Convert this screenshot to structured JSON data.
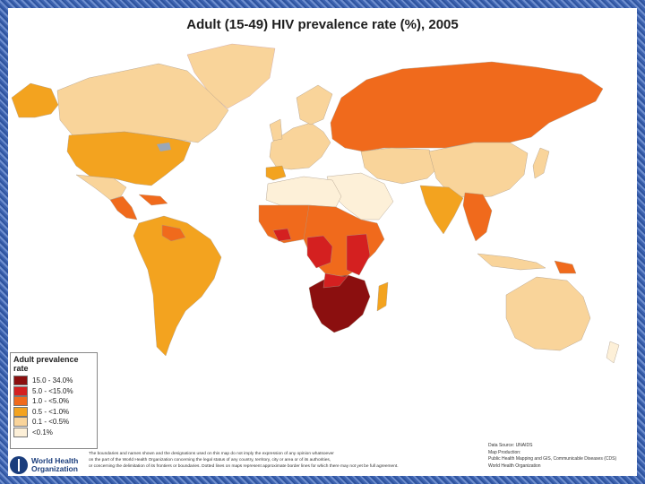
{
  "title": "Adult (15-49) HIV prevalence rate (%), 2005",
  "legend": {
    "title": "Adult prevalence rate",
    "items": [
      {
        "label": "15.0 - 34.0%",
        "color": "#8b0f0f"
      },
      {
        "label": "5.0 - <15.0%",
        "color": "#d42020"
      },
      {
        "label": "1.0 - <5.0%",
        "color": "#f06a1c"
      },
      {
        "label": "0.5 - <1.0%",
        "color": "#f3a31f"
      },
      {
        "label": "0.1 - <0.5%",
        "color": "#f9d49a"
      },
      {
        "label": "<0.1%",
        "color": "#fdf0d8"
      }
    ]
  },
  "logo": {
    "line1": "World Health",
    "line2": "Organization"
  },
  "disclaimer": {
    "line1": "The boundaries and names shown and the designations used on this map do not imply the expression of any opinion whatsoever",
    "line2": "on the part of the World Health Organization concerning the legal status of any country, territory, city or area or of its authorities,",
    "line3": "or concerning the delimitation of its frontiers or boundaries. Dotted lines on maps represent approximate border lines for which there may not yet be full agreement."
  },
  "source": {
    "line1": "Data Source: UNAIDS",
    "line2": "Map Production:",
    "line3": "Public Health Mapping and GIS, Communicable Diseases (CDS)",
    "line4": "World Health Organization"
  }
}
